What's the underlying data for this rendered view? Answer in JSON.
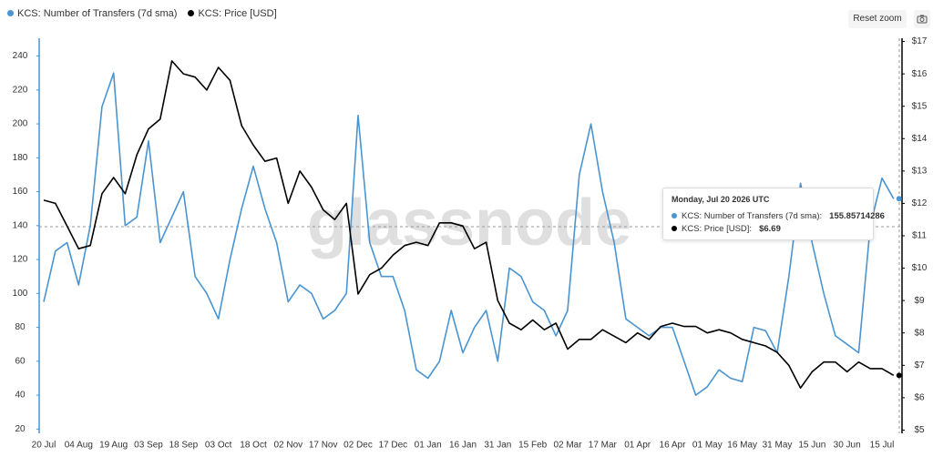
{
  "chart_data": {
    "type": "line",
    "watermark": "glassnode",
    "reset_button": "Reset zoom",
    "categories": [
      "20 Jul",
      null,
      null,
      "04 Aug",
      null,
      null,
      "19 Aug",
      null,
      null,
      "03 Sep",
      null,
      null,
      "18 Sep",
      null,
      null,
      "03 Oct",
      null,
      null,
      "18 Oct",
      null,
      null,
      "02 Nov",
      null,
      null,
      "17 Nov",
      null,
      null,
      "02 Dec",
      null,
      null,
      "17 Dec",
      null,
      null,
      "01 Jan",
      null,
      null,
      "16 Jan",
      null,
      null,
      "31 Jan",
      null,
      null,
      "15 Feb",
      null,
      null,
      "02 Mar",
      null,
      null,
      "17 Mar",
      null,
      null,
      "01 Apr",
      null,
      null,
      "16 Apr",
      null,
      null,
      "01 May",
      null,
      null,
      "16 May",
      null,
      null,
      "31 May",
      null,
      null,
      "15 Jun",
      null,
      null,
      "30 Jun",
      null,
      null,
      "15 Jul",
      null
    ],
    "series": [
      {
        "name": "KCS: Number of Transfers (7d sma)",
        "color": "#4a94d0",
        "axis": "y",
        "values": [
          95,
          125,
          130,
          105,
          140,
          210,
          230,
          140,
          145,
          190,
          130,
          145,
          160,
          110,
          100,
          85,
          120,
          150,
          175,
          150,
          130,
          95,
          105,
          100,
          85,
          90,
          100,
          205,
          130,
          110,
          110,
          90,
          55,
          50,
          60,
          90,
          65,
          80,
          90,
          60,
          115,
          110,
          95,
          90,
          75,
          90,
          170,
          200,
          160,
          130,
          85,
          80,
          75,
          80,
          80,
          60,
          40,
          45,
          55,
          50,
          48,
          80,
          78,
          65,
          110,
          165,
          130,
          100,
          75,
          70,
          65,
          140,
          168,
          155.85714286
        ]
      },
      {
        "name": "KCS: Price [USD]",
        "color": "#000000",
        "axis": "y2",
        "values": [
          12.1,
          12.0,
          11.3,
          10.6,
          10.7,
          12.3,
          12.8,
          12.3,
          13.5,
          14.3,
          14.6,
          16.4,
          16.0,
          15.9,
          15.5,
          16.2,
          15.8,
          14.4,
          13.8,
          13.3,
          13.4,
          12.0,
          13.0,
          12.5,
          11.8,
          11.5,
          12.0,
          9.2,
          9.8,
          10.0,
          10.4,
          10.7,
          10.8,
          10.7,
          11.4,
          11.4,
          11.3,
          10.6,
          10.8,
          9.0,
          8.3,
          8.1,
          8.4,
          8.1,
          8.3,
          7.5,
          7.8,
          7.8,
          8.1,
          7.9,
          7.7,
          8.0,
          7.8,
          8.2,
          8.3,
          8.2,
          8.2,
          8.0,
          8.1,
          8.0,
          7.8,
          7.7,
          7.6,
          7.4,
          7.0,
          6.3,
          6.8,
          7.1,
          7.1,
          6.8,
          7.1,
          6.9,
          6.9,
          6.69
        ]
      }
    ],
    "ylim": [
      17.5,
      250.5
    ],
    "yticks": [
      20,
      40,
      60,
      80,
      100,
      120,
      140,
      160,
      180,
      200,
      220,
      240
    ],
    "y2lim": [
      4.9,
      17.1
    ],
    "y2ticks": [
      {
        "value": 5,
        "label": "$5"
      },
      {
        "value": 6,
        "label": "$6"
      },
      {
        "value": 7,
        "label": "$7"
      },
      {
        "value": 8,
        "label": "$8"
      },
      {
        "value": 9,
        "label": "$9"
      },
      {
        "value": 10,
        "label": "$10"
      },
      {
        "value": 11,
        "label": "$11"
      },
      {
        "value": 12,
        "label": "$12"
      },
      {
        "value": 13,
        "label": "$13"
      },
      {
        "value": 14,
        "label": "$14"
      },
      {
        "value": 15,
        "label": "$15"
      },
      {
        "value": 16,
        "label": "$16"
      },
      {
        "value": 17,
        "label": "$17"
      }
    ],
    "tooltip": {
      "date": "Monday, Jul 20 2026 UTC",
      "items": [
        {
          "label": "KCS: Number of Transfers (7d sma):",
          "value": "155.85714286"
        },
        {
          "label": "KCS: Price [USD]:",
          "value": "$6.69"
        }
      ]
    }
  }
}
